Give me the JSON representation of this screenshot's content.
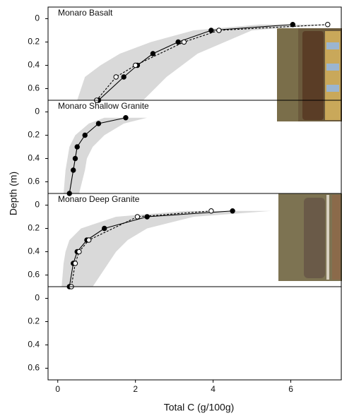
{
  "chart_data": [
    {
      "type": "line",
      "title": "Monaro Basalt",
      "xlim": [
        -0.25,
        7.3
      ],
      "ylim": [
        -0.1,
        0.7
      ],
      "inverted": true,
      "yticks": [
        0,
        0.2,
        0.4,
        0.6
      ],
      "band": {
        "y": [
          0.05,
          0.1,
          0.2,
          0.3,
          0.4,
          0.5,
          0.7
        ],
        "x_low": [
          5.2,
          3.5,
          2.4,
          1.6,
          1.1,
          0.7,
          0.5
        ],
        "x_high": [
          7.0,
          5.0,
          4.3,
          3.6,
          3.2,
          2.8,
          2.2
        ],
        "color": "#d9d9d9"
      },
      "series": [
        {
          "marker": "filled",
          "dash": false,
          "color": "#000000",
          "x": [
            6.05,
            3.95,
            3.1,
            2.45,
            2.05,
            1.7,
            1.05
          ],
          "values": [
            0.05,
            0.1,
            0.2,
            0.3,
            0.4,
            0.5,
            0.7
          ]
        },
        {
          "marker": "open",
          "dash": true,
          "color": "#000000",
          "x": [
            6.95,
            4.15,
            3.25,
            2.0,
            1.5,
            1.0
          ],
          "values": [
            0.05,
            0.1,
            0.2,
            0.4,
            0.5,
            0.7
          ]
        }
      ]
    },
    {
      "type": "line",
      "title": "Monaro Shallow Granite",
      "ylabel": "Depth (m)",
      "xlim": [
        -0.25,
        7.3
      ],
      "ylim": [
        -0.1,
        0.7
      ],
      "inverted": true,
      "yticks": [
        0,
        0.2,
        0.4,
        0.6
      ],
      "band": {
        "y": [
          0.05,
          0.1,
          0.2,
          0.3,
          0.4,
          0.5,
          0.7
        ],
        "x_low": [
          1.2,
          0.8,
          0.45,
          0.3,
          0.25,
          0.2,
          0.15
        ],
        "x_high": [
          2.3,
          1.7,
          1.2,
          0.9,
          0.75,
          0.7,
          0.55
        ],
        "color": "#d9d9d9"
      },
      "series": [
        {
          "marker": "filled",
          "dash": false,
          "color": "#000000",
          "x": [
            1.75,
            1.05,
            0.7,
            0.5,
            0.45,
            0.4,
            0.3
          ],
          "values": [
            0.05,
            0.1,
            0.2,
            0.3,
            0.4,
            0.5,
            0.7
          ]
        }
      ]
    },
    {
      "type": "line",
      "title": "Monaro Deep Granite",
      "xlim": [
        -0.25,
        7.3
      ],
      "ylim": [
        -0.1,
        0.7
      ],
      "inverted": true,
      "yticks": [
        0,
        0.2,
        0.4,
        0.6
      ],
      "band": {
        "y": [
          0.05,
          0.1,
          0.2,
          0.3,
          0.4,
          0.5,
          0.7
        ],
        "x_low": [
          3.3,
          1.5,
          0.6,
          0.3,
          0.2,
          0.15,
          0.1
        ],
        "x_high": [
          5.5,
          3.5,
          2.3,
          1.8,
          1.5,
          1.3,
          0.9
        ],
        "color": "#d9d9d9"
      },
      "series": [
        {
          "marker": "filled",
          "dash": false,
          "color": "#000000",
          "x": [
            4.5,
            2.3,
            1.2,
            0.75,
            0.5,
            0.4,
            0.3
          ],
          "values": [
            0.05,
            0.1,
            0.2,
            0.3,
            0.4,
            0.5,
            0.7
          ]
        },
        {
          "marker": "open",
          "dash": true,
          "color": "#000000",
          "x": [
            3.95,
            2.05,
            0.8,
            0.55,
            0.45,
            0.35
          ],
          "values": [
            0.05,
            0.1,
            0.3,
            0.4,
            0.5,
            0.7
          ]
        }
      ]
    },
    {
      "type": "line",
      "xlabel": "Total C (g/100g)",
      "xlim": [
        -0.25,
        7.3
      ],
      "ylim": [
        -0.1,
        0.7
      ],
      "inverted": true,
      "yticks": [
        0,
        0.2,
        0.4,
        0.6
      ],
      "xticks": [
        0,
        2,
        4,
        6
      ],
      "series": []
    }
  ]
}
